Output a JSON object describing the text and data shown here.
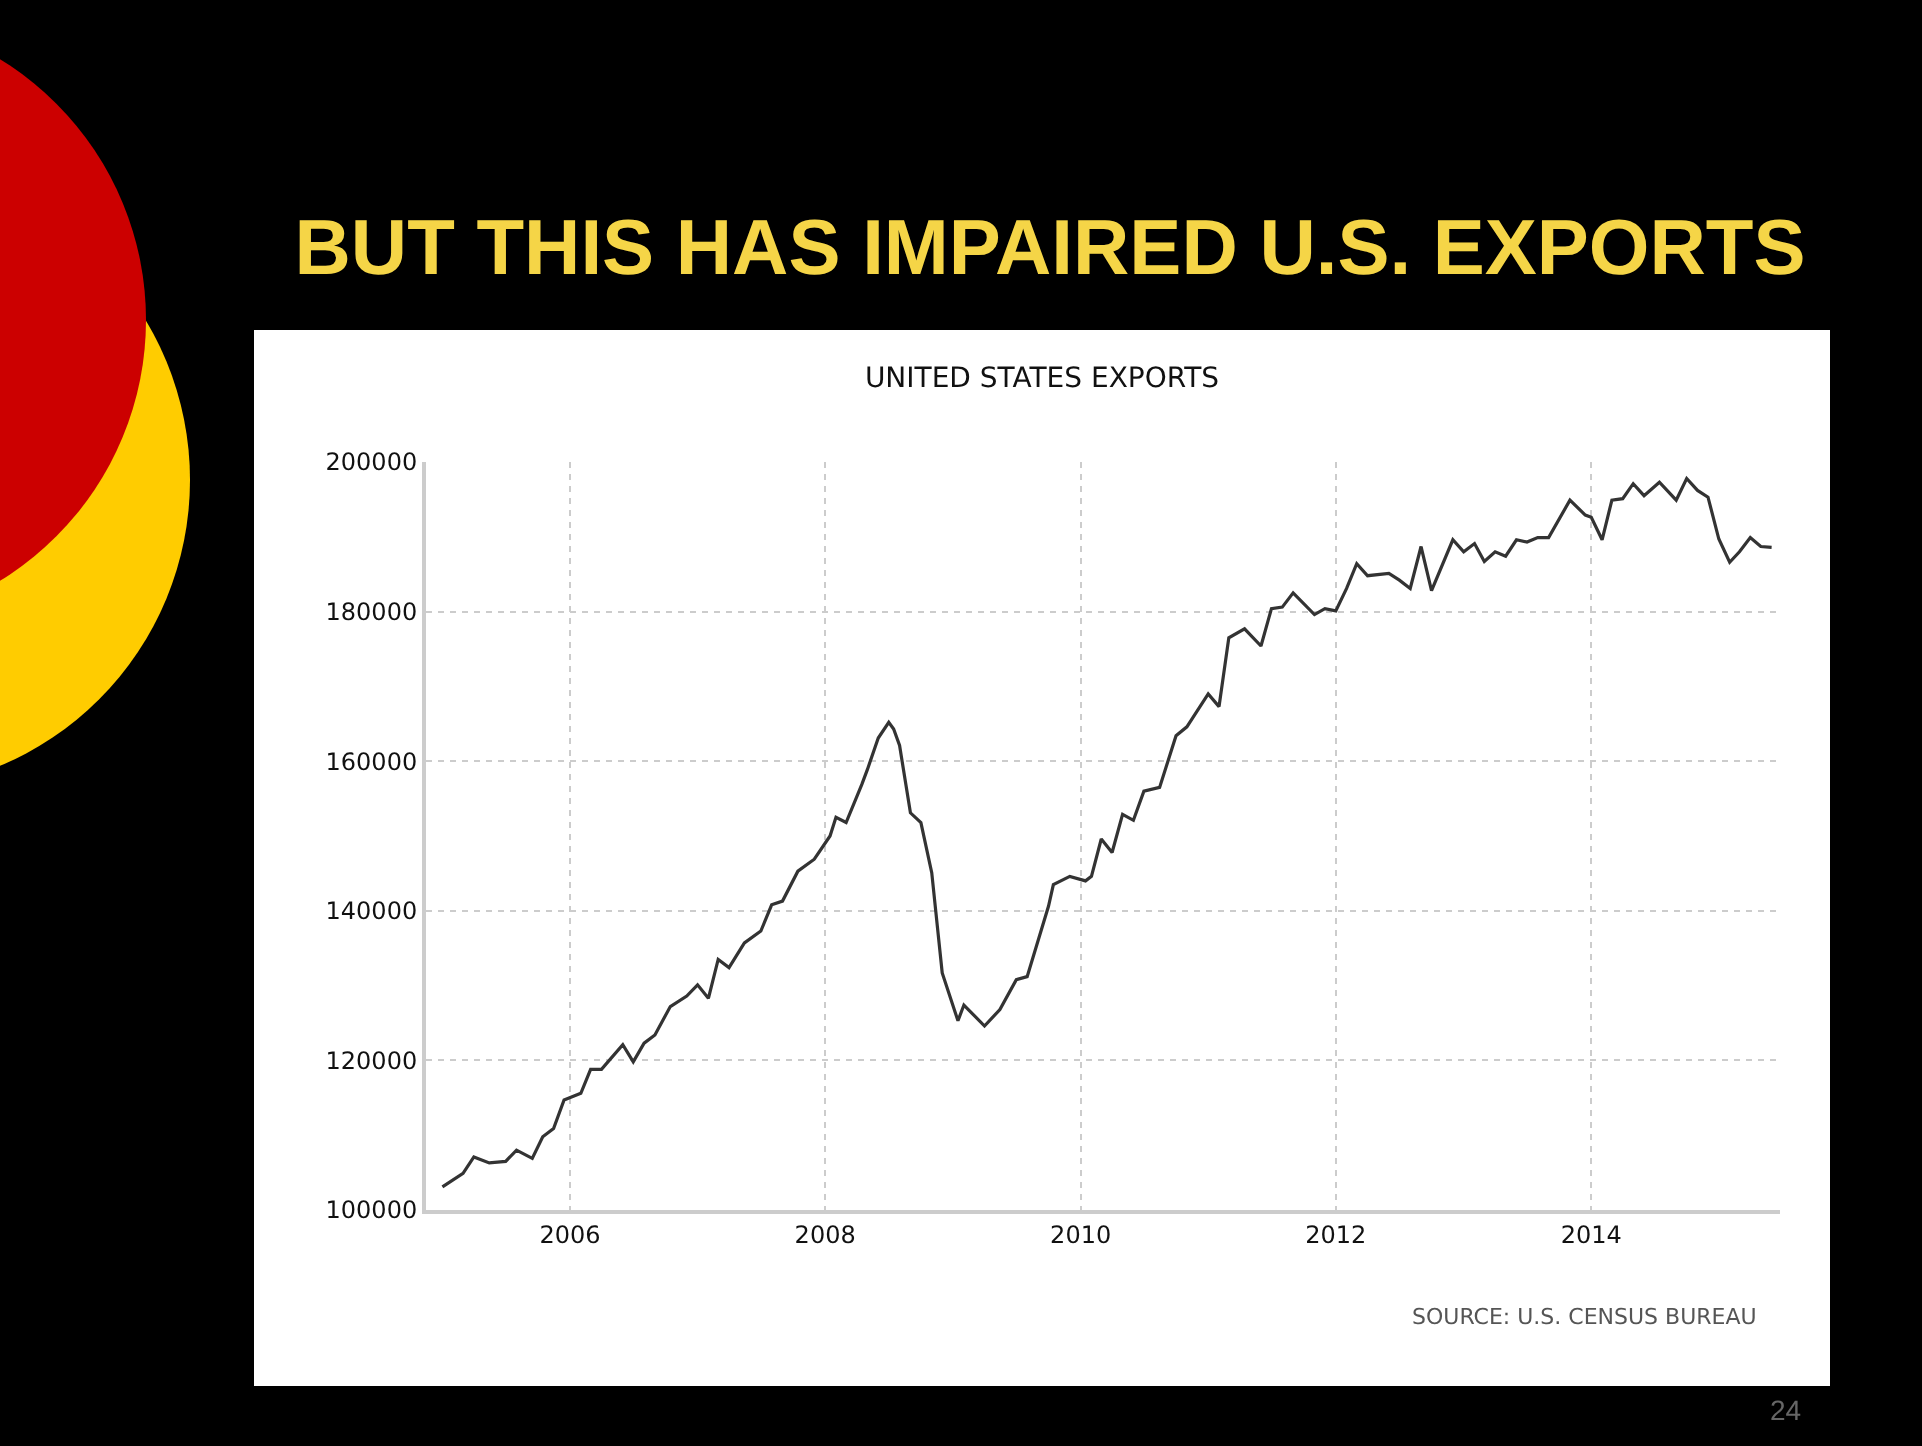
{
  "chart_data": {
    "type": "line",
    "title": "BUT THIS HAS IMPAIRED U.S. EXPORTS",
    "subtitle": "UNITED STATES EXPORTS",
    "annotations": [
      "SOURCE: U.S. CENSUS BUREAU",
      "24"
    ],
    "x": [
      "2005-01-01",
      "2005-03-01",
      "2005-04-01",
      "2005-05-15",
      "2005-07-01",
      "2005-08-01",
      "2005-09-15",
      "2005-10-15",
      "2005-11-15",
      "2005-12-15",
      "2006-02-01",
      "2006-03-01",
      "2006-04-01",
      "2006-06-01",
      "2006-07-01",
      "2006-08-01",
      "2006-09-01",
      "2006-10-15",
      "2006-12-01",
      "2007-01-01",
      "2007-02-01",
      "2007-03-01",
      "2007-04-01",
      "2007-05-15",
      "2007-07-01",
      "2007-08-01",
      "2007-09-01",
      "2007-10-15",
      "2007-12-01",
      "2008-01-15",
      "2008-02-01",
      "2008-03-01",
      "2008-04-15",
      "2008-05-01",
      "2008-06-01",
      "2008-07-01",
      "2008-07-15",
      "2008-08-01",
      "2008-09-01",
      "2008-10-01",
      "2008-11-01",
      "2008-12-01",
      "2009-01-15",
      "2009-02-01",
      "2009-04-01",
      "2009-05-15",
      "2009-07-01",
      "2009-08-01",
      "2009-10-01",
      "2009-10-15",
      "2009-12-01",
      "2010-01-15",
      "2010-02-01",
      "2010-03-01",
      "2010-04-01",
      "2010-05-01",
      "2010-06-01",
      "2010-07-01",
      "2010-08-15",
      "2010-10-01",
      "2010-11-01",
      "2011-01-01",
      "2011-02-01",
      "2011-03-01",
      "2011-04-15",
      "2011-06-01",
      "2011-07-01",
      "2011-08-01",
      "2011-09-01",
      "2011-11-01",
      "2011-12-01",
      "2012-01-01",
      "2012-02-01",
      "2012-03-01",
      "2012-04-01",
      "2012-06-01",
      "2012-07-01",
      "2012-08-01",
      "2012-09-01",
      "2012-10-01",
      "2012-12-01",
      "2013-01-01",
      "2013-02-01",
      "2013-03-01",
      "2013-04-01",
      "2013-05-01",
      "2013-06-01",
      "2013-07-01",
      "2013-08-01",
      "2013-09-01",
      "2013-11-01",
      "2013-12-15",
      "2014-01-01",
      "2014-02-01",
      "2014-03-01",
      "2014-04-01",
      "2014-05-01",
      "2014-06-01",
      "2014-07-15",
      "2014-09-01",
      "2014-10-01",
      "2014-11-01",
      "2014-12-01",
      "2015-01-01",
      "2015-02-01",
      "2015-03-01",
      "2015-04-01",
      "2015-05-01",
      "2015-06-01"
    ],
    "series": [
      {
        "color": "#333333",
        "values": [
          103100,
          104900,
          107100,
          106300,
          106500,
          108000,
          106900,
          109800,
          110900,
          114700,
          115600,
          118800,
          118800,
          122100,
          119800,
          122300,
          123400,
          127200,
          128600,
          130100,
          128300,
          133500,
          132400,
          135700,
          137300,
          140800,
          141300,
          145300,
          146900,
          150000,
          152500,
          151800,
          156900,
          158900,
          163100,
          165200,
          164300,
          162100,
          153100,
          151800,
          145100,
          131700,
          125300,
          127400,
          124600,
          126800,
          130800,
          131200,
          140600,
          143500,
          144600,
          144000,
          144600,
          149600,
          147800,
          152900,
          152100,
          156000,
          156500,
          163400,
          164600,
          169000,
          167300,
          176500,
          177700,
          175400,
          180400,
          180600,
          182500,
          179600,
          180400,
          180100,
          183100,
          186400,
          184800,
          185100,
          184200,
          183100,
          188700,
          182800,
          189600,
          188000,
          189100,
          186700,
          188000,
          187400,
          189600,
          189300,
          189900,
          189900,
          194900,
          192900,
          192600,
          189600,
          194900,
          195100,
          197100,
          195500,
          197300,
          194900,
          197800,
          196200,
          195300,
          189700,
          186600,
          188000,
          189900,
          188700,
          188600
        ]
      }
    ],
    "xlim": [
      "2004-11-15",
      "2015-06-25"
    ],
    "xticks": [
      "2006",
      "2008",
      "2010",
      "2012",
      "2014"
    ],
    "ylim": [
      100000,
      200000
    ],
    "yticks": [
      100000,
      120000,
      140000,
      160000,
      180000,
      200000
    ],
    "grid": true,
    "marker": "none",
    "line_style": "solid"
  }
}
